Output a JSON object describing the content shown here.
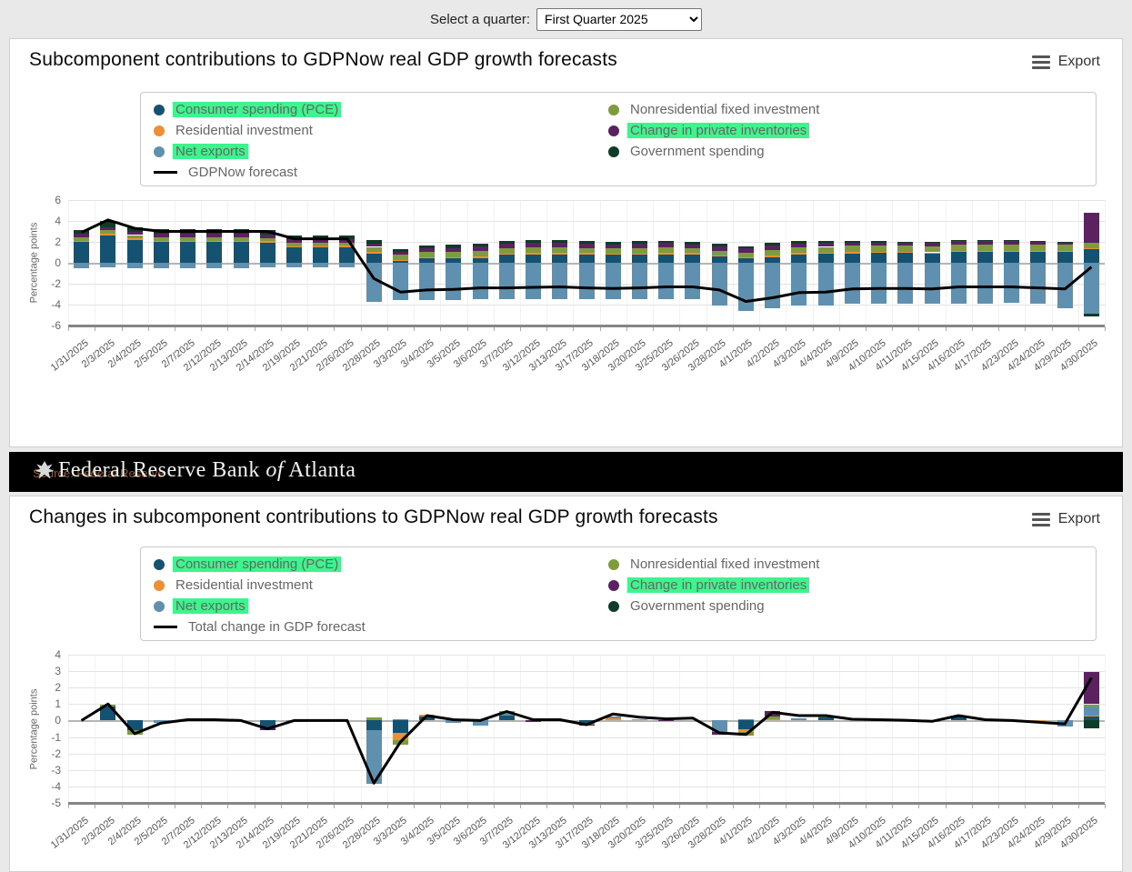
{
  "topbar": {
    "label": "Select a quarter:",
    "quarter_value": "First Quarter 2025"
  },
  "export_label": "Export",
  "highlight_color": "#3ef58d",
  "banner": {
    "watermark": "Source: Federal Reserve",
    "title_regular_1": "Federal Reserve Bank ",
    "title_italic": "of",
    "title_regular_2": " Atlanta"
  },
  "chart_data": [
    {
      "type": "bar",
      "stacked": true,
      "title": "Subcomponent contributions to GDPNow real GDP growth forecasts",
      "ylabel": "Percentage points",
      "ylim": [
        -6,
        6
      ],
      "yticks": [
        6,
        4,
        2,
        0,
        -2,
        -4,
        -6
      ],
      "grid": true,
      "legend_position": "top",
      "categories": [
        "1/31/2025",
        "2/3/2025",
        "2/4/2025",
        "2/5/2025",
        "2/7/2025",
        "2/12/2025",
        "2/13/2025",
        "2/14/2025",
        "2/19/2025",
        "2/21/2025",
        "2/26/2025",
        "2/28/2025",
        "3/3/2025",
        "3/4/2025",
        "3/5/2025",
        "3/6/2025",
        "3/7/2025",
        "3/12/2025",
        "3/13/2025",
        "3/17/2025",
        "3/18/2025",
        "3/20/2025",
        "3/25/2025",
        "3/26/2025",
        "3/28/2025",
        "4/1/2025",
        "4/2/2025",
        "4/3/2025",
        "4/4/2025",
        "4/9/2025",
        "4/10/2025",
        "4/11/2025",
        "4/15/2025",
        "4/16/2025",
        "4/17/2025",
        "4/23/2025",
        "4/24/2025",
        "4/29/2025",
        "4/30/2025"
      ],
      "series": [
        {
          "name": "Consumer spending (PCE)",
          "color": "#155170",
          "highlighted": true,
          "values": [
            2.0,
            2.65,
            2.2,
            2.0,
            2.0,
            2.0,
            2.0,
            1.95,
            1.45,
            1.45,
            1.5,
            0.9,
            0.15,
            0.4,
            0.4,
            0.45,
            0.75,
            0.8,
            0.8,
            0.8,
            0.75,
            0.75,
            0.8,
            0.8,
            0.6,
            0.4,
            0.55,
            0.8,
            0.85,
            0.9,
            0.92,
            0.92,
            0.9,
            1.05,
            1.05,
            1.05,
            1.02,
            1.02,
            1.3
          ]
        },
        {
          "name": "Residential investment",
          "color": "#ee8f33",
          "highlighted": false,
          "values": [
            0.12,
            0.12,
            0.12,
            0.12,
            0.12,
            0.12,
            0.12,
            0.12,
            0.12,
            0.12,
            0.12,
            0.12,
            0.15,
            0.12,
            0.12,
            0.12,
            0.12,
            0.12,
            0.12,
            0.12,
            0.12,
            0.15,
            0.18,
            0.18,
            0.12,
            0.1,
            0.12,
            0.12,
            0.12,
            0.15,
            0.12,
            0.12,
            0.1,
            0.1,
            0.1,
            0.1,
            0.08,
            0.08,
            0.05
          ]
        },
        {
          "name": "Net exports",
          "color": "#5f90b0",
          "highlighted": true,
          "values": [
            -0.5,
            -0.45,
            -0.5,
            -0.5,
            -0.5,
            -0.5,
            -0.5,
            -0.45,
            -0.45,
            -0.45,
            -0.45,
            -3.7,
            -3.6,
            -3.55,
            -3.6,
            -3.5,
            -3.5,
            -3.5,
            -3.5,
            -3.45,
            -3.5,
            -3.5,
            -3.45,
            -3.5,
            -4.1,
            -4.6,
            -4.35,
            -4.1,
            -4.05,
            -3.95,
            -3.9,
            -3.9,
            -3.95,
            -3.9,
            -3.9,
            -3.85,
            -3.95,
            -4.35,
            -4.9
          ]
        },
        {
          "name": "Nonresidential fixed investment",
          "color": "#7e9c3d",
          "highlighted": false,
          "values": [
            0.33,
            0.33,
            0.33,
            0.3,
            0.3,
            0.3,
            0.3,
            0.3,
            0.33,
            0.33,
            0.33,
            0.5,
            0.45,
            0.5,
            0.5,
            0.55,
            0.55,
            0.55,
            0.55,
            0.5,
            0.5,
            0.5,
            0.5,
            0.45,
            0.45,
            0.45,
            0.55,
            0.55,
            0.55,
            0.6,
            0.6,
            0.6,
            0.6,
            0.62,
            0.62,
            0.62,
            0.62,
            0.62,
            0.6
          ]
        },
        {
          "name": "Change in private inventories",
          "color": "#5c2160",
          "highlighted": true,
          "values": [
            0.3,
            0.32,
            0.3,
            0.35,
            0.35,
            0.35,
            0.35,
            0.35,
            0.35,
            0.35,
            0.3,
            0.3,
            0.3,
            0.35,
            0.4,
            0.42,
            0.42,
            0.42,
            0.42,
            0.4,
            0.4,
            0.4,
            0.4,
            0.35,
            0.4,
            0.4,
            0.45,
            0.35,
            0.35,
            0.3,
            0.28,
            0.28,
            0.28,
            0.28,
            0.28,
            0.3,
            0.28,
            0.2,
            2.8
          ]
        },
        {
          "name": "Government spending",
          "color": "#0d3d29",
          "highlighted": false,
          "values": [
            0.4,
            0.55,
            0.45,
            0.45,
            0.45,
            0.45,
            0.45,
            0.45,
            0.4,
            0.4,
            0.35,
            0.35,
            0.25,
            0.28,
            0.28,
            0.28,
            0.28,
            0.28,
            0.28,
            0.28,
            0.25,
            0.25,
            0.25,
            0.25,
            0.25,
            0.25,
            0.25,
            0.25,
            0.2,
            0.18,
            0.15,
            0.12,
            0.12,
            0.1,
            0.1,
            0.08,
            0.08,
            0.05,
            -0.2
          ]
        }
      ],
      "line_series": {
        "name": "GDPNow forecast",
        "color": "#000000",
        "values": [
          2.9,
          4.1,
          3.3,
          3.0,
          3.0,
          3.0,
          3.0,
          3.0,
          2.3,
          2.3,
          2.3,
          -1.5,
          -2.8,
          -2.6,
          -2.55,
          -2.4,
          -2.4,
          -2.35,
          -2.3,
          -2.4,
          -2.45,
          -2.4,
          -2.3,
          -2.3,
          -2.6,
          -3.7,
          -3.35,
          -2.85,
          -2.8,
          -2.5,
          -2.45,
          -2.45,
          -2.5,
          -2.3,
          -2.3,
          -2.3,
          -2.4,
          -2.5,
          -0.4
        ]
      }
    },
    {
      "type": "bar",
      "stacked": true,
      "title": "Changes in subcomponent contributions to GDPNow real GDP growth forecasts",
      "ylabel": "Percentage points",
      "ylim": [
        -5,
        4
      ],
      "yticks": [
        4,
        3,
        2,
        1,
        0,
        -1,
        -2,
        -3,
        -4,
        -5
      ],
      "grid": true,
      "legend_position": "top",
      "categories": [
        "1/31/2025",
        "2/3/2025",
        "2/4/2025",
        "2/5/2025",
        "2/7/2025",
        "2/12/2025",
        "2/13/2025",
        "2/14/2025",
        "2/19/2025",
        "2/21/2025",
        "2/26/2025",
        "2/28/2025",
        "3/3/2025",
        "3/4/2025",
        "3/5/2025",
        "3/6/2025",
        "3/7/2025",
        "3/12/2025",
        "3/13/2025",
        "3/17/2025",
        "3/18/2025",
        "3/20/2025",
        "3/25/2025",
        "3/26/2025",
        "3/28/2025",
        "4/1/2025",
        "4/2/2025",
        "4/3/2025",
        "4/4/2025",
        "4/9/2025",
        "4/10/2025",
        "4/11/2025",
        "4/15/2025",
        "4/16/2025",
        "4/17/2025",
        "4/23/2025",
        "4/24/2025",
        "4/29/2025",
        "4/30/2025"
      ],
      "series": [
        {
          "name": "Consumer spending (PCE)",
          "color": "#155170",
          "highlighted": true,
          "values": [
            0,
            0.85,
            -0.6,
            0,
            0,
            0,
            0,
            -0.4,
            0,
            0,
            0,
            -0.6,
            -0.75,
            0.25,
            0,
            0,
            0.3,
            0,
            0,
            -0.15,
            0,
            0,
            0,
            0,
            0,
            -0.55,
            0,
            0,
            0.22,
            0,
            0,
            0,
            0,
            0.28,
            0,
            0,
            0,
            0,
            0.28
          ]
        },
        {
          "name": "Residential investment",
          "color": "#ee8f33",
          "highlighted": false,
          "values": [
            0,
            0,
            0,
            0,
            0,
            0,
            0,
            0,
            0,
            0,
            0,
            0,
            -0.45,
            0.08,
            0,
            0,
            0,
            0,
            0,
            0,
            0.15,
            0.08,
            0,
            0,
            0,
            -0.12,
            0.1,
            0,
            0,
            0,
            0,
            0,
            0,
            0.04,
            0,
            0,
            -0.1,
            0,
            0.04
          ]
        },
        {
          "name": "Net exports",
          "color": "#5f90b0",
          "highlighted": true,
          "values": [
            0,
            0,
            0,
            -0.12,
            0,
            0,
            0,
            0,
            -0.06,
            0,
            0,
            -3.25,
            0.1,
            0,
            -0.15,
            -0.3,
            0.2,
            0,
            0,
            0,
            0.08,
            0,
            0,
            0,
            -0.7,
            0.08,
            0,
            0.12,
            0,
            0,
            0,
            0,
            -0.1,
            0,
            0,
            0,
            0,
            -0.35,
            0.55
          ]
        },
        {
          "name": "Nonresidential fixed investment",
          "color": "#7e9c3d",
          "highlighted": false,
          "values": [
            0,
            0.12,
            -0.25,
            0,
            0,
            0,
            0,
            0,
            0,
            0,
            0,
            0.18,
            -0.25,
            0,
            0,
            0.1,
            0.07,
            0,
            0,
            -0.08,
            0,
            0,
            0,
            0,
            0,
            -0.25,
            0.15,
            0,
            0.05,
            0,
            0,
            0,
            0,
            0,
            0,
            0,
            0,
            0,
            0.12
          ]
        },
        {
          "name": "Change in private inventories",
          "color": "#5c2160",
          "highlighted": true,
          "values": [
            0,
            0,
            0,
            0,
            0.08,
            0,
            0,
            -0.2,
            0,
            0,
            0,
            0,
            0,
            0,
            0,
            0,
            0,
            -0.06,
            0,
            -0.1,
            0,
            0,
            -0.05,
            0,
            -0.15,
            0,
            0.3,
            0,
            0,
            0,
            0.04,
            -0.05,
            0,
            0,
            0,
            -0.05,
            0,
            0,
            1.95
          ]
        },
        {
          "name": "Government spending",
          "color": "#0d3d29",
          "highlighted": false,
          "values": [
            0,
            0,
            0,
            0,
            0,
            0,
            0,
            0,
            0,
            0,
            0,
            0,
            0,
            0,
            0,
            0,
            0,
            0,
            0,
            0,
            0,
            0,
            0,
            0,
            0,
            0,
            0,
            0,
            0,
            0,
            0,
            0,
            0,
            0,
            0,
            0,
            0,
            0,
            -0.45
          ]
        }
      ],
      "line_series": {
        "name": "Total change in GDP forecast",
        "color": "#000000",
        "values": [
          0,
          1.0,
          -0.8,
          -0.15,
          0.05,
          0.05,
          0,
          -0.5,
          0,
          0,
          0,
          -3.8,
          -1.3,
          0.3,
          0.05,
          0,
          0.55,
          0.05,
          0.05,
          -0.25,
          0.4,
          0.2,
          0.1,
          0.15,
          -0.75,
          -0.85,
          0.5,
          0.3,
          0.3,
          0.08,
          0.05,
          0.02,
          -0.05,
          0.3,
          0.05,
          0,
          -0.1,
          -0.2,
          2.6
        ]
      }
    }
  ]
}
